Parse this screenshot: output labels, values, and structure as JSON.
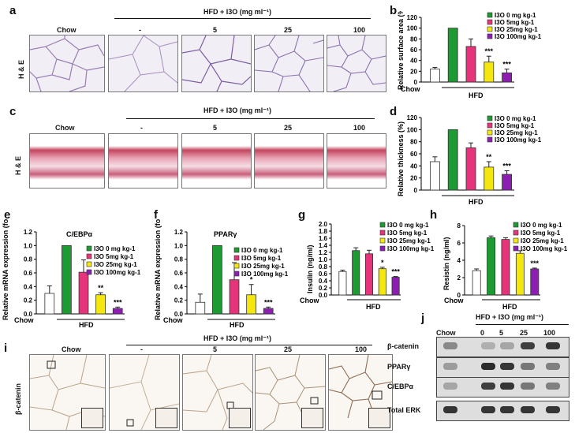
{
  "panels": {
    "a": "a",
    "b": "b",
    "c": "c",
    "d": "d",
    "e": "e",
    "f": "f",
    "g": "g",
    "h": "h",
    "i": "i",
    "j": "j"
  },
  "common": {
    "chow": "Chow",
    "hfd": "HFD",
    "treatment_header": "HFD + I3O (mg ml⁻¹)",
    "doses": [
      "-",
      "5",
      "25",
      "100"
    ],
    "stain_he": "H & E",
    "stain_bcat": "β-catenin"
  },
  "legend_spaced": [
    "I3O 0 mg kg-1",
    "I3O 5mg kg-1",
    "I3O 25mg kg-1",
    "I3O 100mg kg-1"
  ],
  "legend_tight": [
    "I3O 0 mg kg-1",
    "I3O 5mg kg-1",
    "I3O 25mg kg-1",
    "I3O 100mg kg-1"
  ],
  "colors": {
    "chow": "#ffffff",
    "d0": "#1e9a33",
    "d5": "#e6347a",
    "d25": "#f4e70f",
    "d100": "#8c1fb2"
  },
  "chart_data": [
    {
      "id": "b",
      "type": "bar",
      "ylabel": "Relative surface area (%)",
      "ylim": [
        0,
        120
      ],
      "yticks": [
        0,
        20,
        40,
        60,
        80,
        100,
        120
      ],
      "categories": [
        "Chow",
        "I3O 0",
        "I3O 5",
        "I3O 25",
        "I3O 100"
      ],
      "values": [
        24,
        100,
        66,
        37,
        17
      ],
      "errors": [
        3,
        0,
        14,
        11,
        7
      ],
      "sig": [
        "",
        "",
        "",
        "***",
        "***"
      ]
    },
    {
      "id": "d",
      "type": "bar",
      "ylabel": "Relative thickness (%)",
      "ylim": [
        0,
        120
      ],
      "yticks": [
        0,
        20,
        40,
        60,
        80,
        100,
        120
      ],
      "categories": [
        "Chow",
        "I3O 0",
        "I3O 5",
        "I3O 25",
        "I3O 100"
      ],
      "values": [
        47,
        100,
        70,
        38,
        26
      ],
      "errors": [
        8,
        0,
        8,
        9,
        6
      ],
      "sig": [
        "",
        "",
        "",
        "**",
        "***"
      ]
    },
    {
      "id": "e",
      "type": "bar",
      "title": "C/EBPα",
      "ylabel": "Relative mRNA expression (fold of control)",
      "ylim": [
        0,
        1.2
      ],
      "yticks": [
        "0.0",
        "0.2",
        "0.4",
        "0.6",
        "0.8",
        "1.0",
        "1.2"
      ],
      "categories": [
        "Chow",
        "I3O 0",
        "I3O 5",
        "I3O 25",
        "I3O 100"
      ],
      "values": [
        0.3,
        1.0,
        0.61,
        0.28,
        0.08
      ],
      "errors": [
        0.11,
        0.0,
        0.18,
        0.03,
        0.02
      ],
      "sig": [
        "",
        "",
        "",
        "**",
        "***"
      ]
    },
    {
      "id": "f",
      "type": "bar",
      "title": "PPARγ",
      "ylabel": "Relative mRNA expression (fold of control)",
      "ylim": [
        0,
        1.2
      ],
      "yticks": [
        "0.0",
        "0.2",
        "0.4",
        "0.6",
        "0.8",
        "1.0",
        "1.2"
      ],
      "categories": [
        "Chow",
        "I3O 0",
        "I3O 5",
        "I3O 25",
        "I3O 100"
      ],
      "values": [
        0.17,
        1.0,
        0.5,
        0.28,
        0.08
      ],
      "errors": [
        0.12,
        0.0,
        0.25,
        0.15,
        0.02
      ],
      "sig": [
        "",
        "",
        "",
        "*",
        "***"
      ]
    },
    {
      "id": "g",
      "type": "bar",
      "ylabel": "Insulin (ng/ml)",
      "ylim": [
        0,
        2.0
      ],
      "yticks": [
        "0.0",
        "0.2",
        "0.4",
        "0.6",
        "0.8",
        "1.0",
        "1.2",
        "1.4",
        "1.6",
        "1.8",
        "2.0"
      ],
      "categories": [
        "Chow",
        "I3O 0",
        "I3O 5",
        "I3O 25",
        "I3O 100"
      ],
      "values": [
        0.66,
        1.25,
        1.16,
        0.74,
        0.5
      ],
      "errors": [
        0.04,
        0.08,
        0.1,
        0.04,
        0.02
      ],
      "sig": [
        "",
        "",
        "",
        "*",
        "***"
      ]
    },
    {
      "id": "h",
      "type": "bar",
      "ylabel": "Resistin (ng/ml)",
      "ylim": [
        0,
        8
      ],
      "yticks": [
        "0",
        "2",
        "4",
        "6",
        "8"
      ],
      "categories": [
        "Chow",
        "I3O 0",
        "I3O 5",
        "I3O 25",
        "I3O 100"
      ],
      "values": [
        2.8,
        6.6,
        6.4,
        4.8,
        3.0
      ],
      "errors": [
        0.2,
        0.2,
        0.2,
        0.3,
        0.1
      ],
      "sig": [
        "",
        "",
        "",
        "",
        "***"
      ]
    }
  ],
  "western": {
    "header": "HFD + I3O (mg ml⁻¹)",
    "lanes": [
      "Chow",
      "0",
      "5",
      "25",
      "100"
    ],
    "rows": [
      {
        "label": "β-catenin",
        "intensity": [
          0.45,
          0.25,
          0.3,
          0.85,
          0.9
        ]
      },
      {
        "label": "PPARγ",
        "intensity": [
          0.35,
          0.95,
          0.9,
          0.55,
          0.5
        ]
      },
      {
        "label": "C/EBPα",
        "intensity": [
          0.3,
          0.85,
          0.9,
          0.55,
          0.5
        ]
      },
      {
        "label": "Total ERK",
        "intensity": [
          0.9,
          0.9,
          0.9,
          0.9,
          0.9
        ]
      }
    ]
  }
}
